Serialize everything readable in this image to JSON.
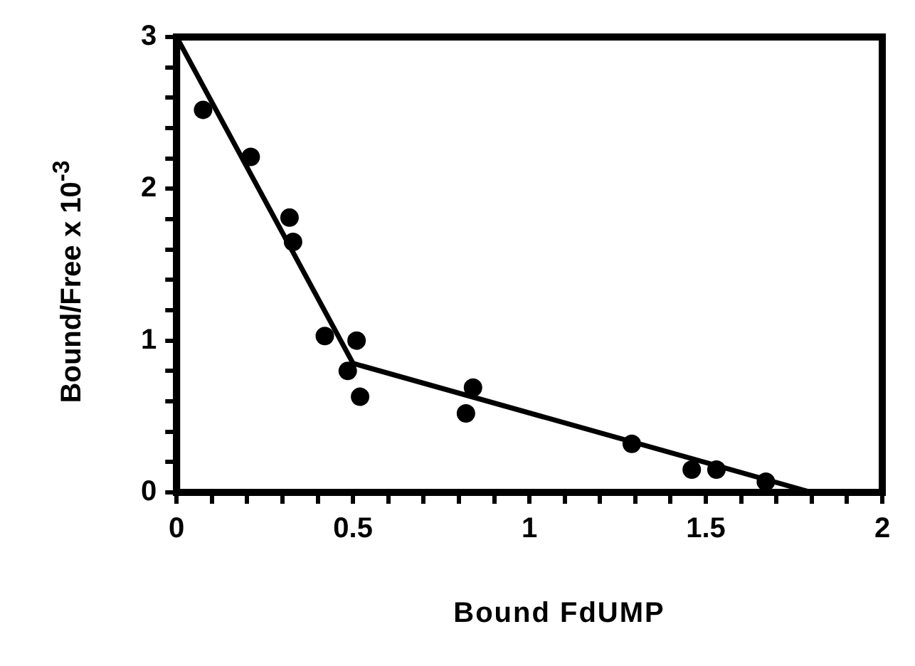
{
  "chart_data": {
    "type": "scatter",
    "xlabel": "Bound FdUMP",
    "ylabel": "Bound/Free x 10$^{-3}$",
    "marker": "circle",
    "grid": false,
    "legend": false,
    "xlim": [
      0,
      2
    ],
    "ylim": [
      0,
      3
    ],
    "xticks": [
      0,
      {
        "value": 0.1,
        "label": null
      },
      {
        "value": 0.2,
        "label": null
      },
      {
        "value": 0.3,
        "label": null
      },
      {
        "value": 0.4,
        "label": null
      },
      0.5,
      {
        "value": 0.6,
        "label": null
      },
      {
        "value": 0.7,
        "label": null
      },
      {
        "value": 0.8,
        "label": null
      },
      {
        "value": 0.9,
        "label": null
      },
      1,
      {
        "value": 1.1,
        "label": null
      },
      {
        "value": 1.2,
        "label": null
      },
      {
        "value": 1.3,
        "label": null
      },
      {
        "value": 1.4,
        "label": null
      },
      1.5,
      {
        "value": 1.6,
        "label": null
      },
      {
        "value": 1.7,
        "label": null
      },
      {
        "value": 1.8,
        "label": null
      },
      {
        "value": 1.9,
        "label": null
      },
      2
    ],
    "yticks": [
      0,
      {
        "value": 0.2,
        "label": null
      },
      {
        "value": 0.4,
        "label": null
      },
      {
        "value": 0.6,
        "label": null
      },
      {
        "value": 0.8,
        "label": null
      },
      1,
      {
        "value": 1.2,
        "label": null
      },
      {
        "value": 1.4,
        "label": null
      },
      {
        "value": 1.6,
        "label": null
      },
      {
        "value": 1.8,
        "label": null
      },
      2,
      {
        "value": 2.2,
        "label": null
      },
      {
        "value": 2.4,
        "label": null
      },
      {
        "value": 2.6,
        "label": null
      },
      {
        "value": 2.8,
        "label": null
      },
      3
    ],
    "series": [
      {
        "color": "#000000",
        "x": [
          0.075,
          0.21,
          0.32,
          0.33,
          0.42,
          0.51,
          0.485,
          0.52,
          0.84,
          0.82,
          1.29,
          1.46,
          1.53,
          1.67
        ],
        "values": [
          2.52,
          2.21,
          1.81,
          1.65,
          1.03,
          1.0,
          0.8,
          0.63,
          0.69,
          0.52,
          0.32,
          0.15,
          0.15,
          0.07
        ]
      },
      {
        "type": "line",
        "color": "#000000",
        "marker": "none",
        "x": [
          0,
          0.5,
          1.8
        ],
        "values": [
          3,
          0.85,
          0
        ]
      }
    ]
  }
}
